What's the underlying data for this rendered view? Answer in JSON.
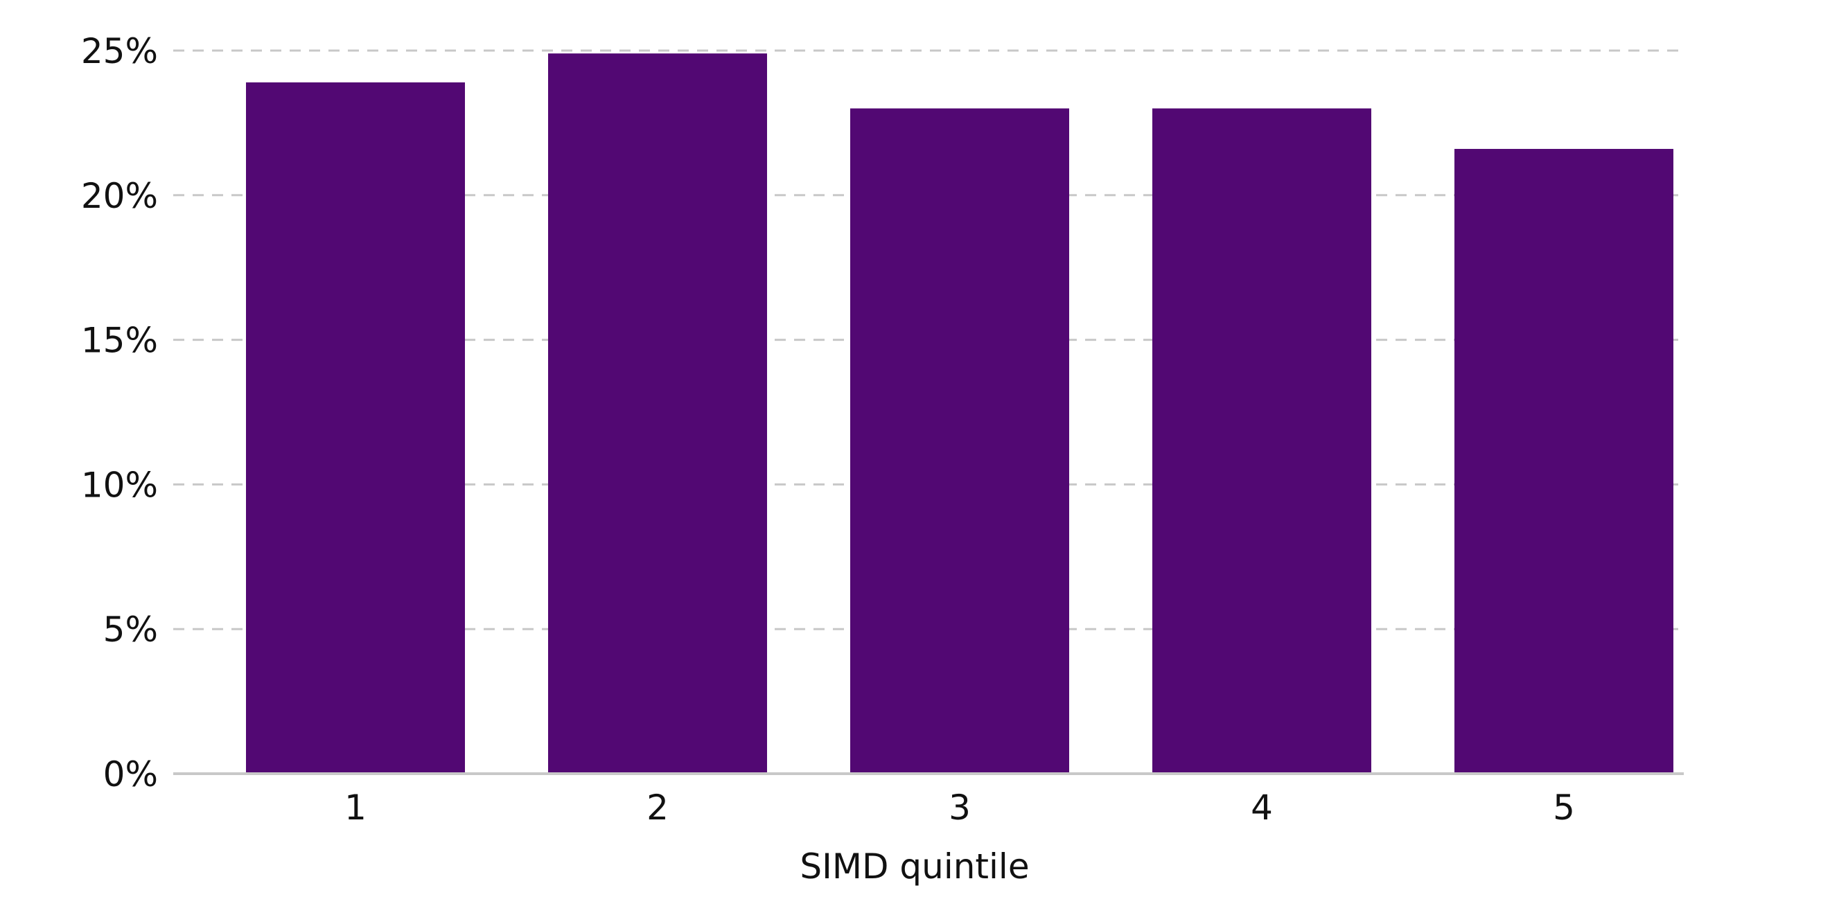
{
  "colors": {
    "bar": "#520873",
    "grid": "#c8c8c8",
    "axis": "#c8c8c8",
    "text": "#111111",
    "background": "#ffffff"
  },
  "chart_data": {
    "type": "bar",
    "title": "",
    "xlabel": "SIMD quintile",
    "ylabel": "",
    "categories": [
      "1",
      "2",
      "3",
      "4",
      "5"
    ],
    "values": [
      0.239,
      0.249,
      0.23,
      0.23,
      0.216
    ],
    "ylim": [
      0,
      0.25
    ],
    "yticks": [
      0,
      0.05,
      0.1,
      0.15,
      0.2,
      0.25
    ],
    "ytick_labels": [
      "0%",
      "5%",
      "10%",
      "15%",
      "20%",
      "25%"
    ],
    "grid": "horizontal dashed",
    "legend": "none"
  }
}
